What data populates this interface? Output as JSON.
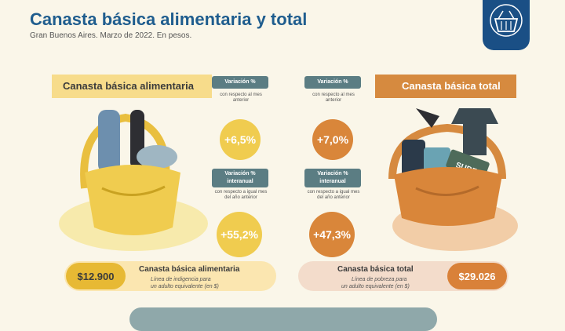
{
  "header": {
    "title": "Canasta básica alimentaria y total",
    "subtitle": "Gran Buenos Aires. Marzo de 2022. En pesos."
  },
  "left": {
    "label": "Canasta básica alimentaria",
    "monthly": {
      "header": "Variación %",
      "desc": "con respecto al mes anterior",
      "value": "+6,5%"
    },
    "yearly": {
      "header": "Variación % interanual",
      "desc": "con respecto a igual mes del año anterior",
      "value": "+55,2%"
    },
    "price": "$12.900",
    "pill_title": "Canasta básica alimentaria",
    "pill_line1": "Línea de indigencia para",
    "pill_line2": "un adulto equivalente (en $)"
  },
  "right": {
    "label": "Canasta básica total",
    "monthly": {
      "header": "Variación %",
      "desc": "con respecto al mes anterior",
      "value": "+7,0%"
    },
    "yearly": {
      "header": "Variación % interanual",
      "desc": "con respecto a igual mes del año anterior",
      "value": "+47,3%"
    },
    "price": "$29.026",
    "pill_title": "Canasta básica total",
    "pill_line1": "Línea de pobreza para",
    "pill_line2": "un adulto equivalente (en $)",
    "card_label": "SUBE"
  },
  "colors": {
    "blue": "#1f5d8e",
    "yellow": "#f0cc4f",
    "orange": "#d9863a",
    "slate": "#5b7d83"
  }
}
